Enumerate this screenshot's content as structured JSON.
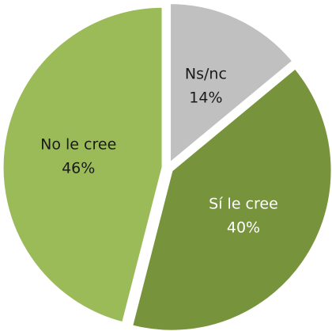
{
  "chart_data": {
    "type": "pie",
    "categories": [
      "Ns/nc",
      "Sí le cree",
      "No le cree"
    ],
    "values": [
      14,
      40,
      46
    ],
    "value_labels": [
      "14%",
      "40%",
      "46%"
    ],
    "colors": [
      "#c0c0c0",
      "#77933c",
      "#9bbb59"
    ]
  }
}
